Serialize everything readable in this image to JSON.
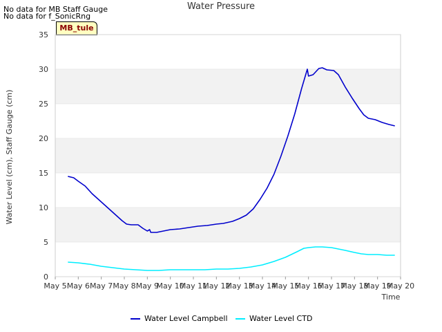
{
  "notes": [
    "No data for MB Staff Gauge",
    "No data for f_SonicRng"
  ],
  "station_label": "MB_tule",
  "colors": {
    "campbell": "#0000cc",
    "ctd": "#00eeff",
    "band": "#f2f2f2",
    "grid": "#dddddd"
  },
  "chart_data": {
    "type": "line",
    "title": "Water Pressure",
    "xlabel": "Time",
    "ylabel": "Water Level (cm), Staff Gauge (cm)",
    "xlim": [
      5,
      20
    ],
    "ylim": [
      0,
      35
    ],
    "x_ticks": [
      5,
      6,
      7,
      8,
      9,
      10,
      11,
      12,
      13,
      14,
      15,
      16,
      17,
      18,
      19,
      20
    ],
    "x_tick_labels": [
      "May 5",
      "May 6",
      "May 7",
      "May 8",
      "May 9",
      "May 10",
      "May 11",
      "May 12",
      "May 13",
      "May 14",
      "May 15",
      "May 16",
      "May 17",
      "May 18",
      "May 19",
      "May 20"
    ],
    "y_ticks": [
      0,
      5,
      10,
      15,
      20,
      25,
      30,
      35
    ],
    "series": [
      {
        "name": "Water Level Campbell",
        "color": "#0000cc",
        "points": [
          [
            5.55,
            14.5
          ],
          [
            5.8,
            14.3
          ],
          [
            6.0,
            13.8
          ],
          [
            6.3,
            13.1
          ],
          [
            6.6,
            12.0
          ],
          [
            7.0,
            10.8
          ],
          [
            7.3,
            9.9
          ],
          [
            7.6,
            9.0
          ],
          [
            7.9,
            8.1
          ],
          [
            8.1,
            7.6
          ],
          [
            8.3,
            7.5
          ],
          [
            8.6,
            7.5
          ],
          [
            8.8,
            7.0
          ],
          [
            9.0,
            6.6
          ],
          [
            9.1,
            6.8
          ],
          [
            9.15,
            6.4
          ],
          [
            9.4,
            6.4
          ],
          [
            9.7,
            6.6
          ],
          [
            10.0,
            6.8
          ],
          [
            10.4,
            6.9
          ],
          [
            10.8,
            7.1
          ],
          [
            11.2,
            7.3
          ],
          [
            11.6,
            7.4
          ],
          [
            12.0,
            7.6
          ],
          [
            12.3,
            7.7
          ],
          [
            12.7,
            8.0
          ],
          [
            13.0,
            8.4
          ],
          [
            13.3,
            8.9
          ],
          [
            13.6,
            9.8
          ],
          [
            13.9,
            11.2
          ],
          [
            14.2,
            12.8
          ],
          [
            14.5,
            14.8
          ],
          [
            14.8,
            17.4
          ],
          [
            15.1,
            20.3
          ],
          [
            15.4,
            23.5
          ],
          [
            15.7,
            27.2
          ],
          [
            15.95,
            30.0
          ],
          [
            16.0,
            29.0
          ],
          [
            16.2,
            29.2
          ],
          [
            16.45,
            30.1
          ],
          [
            16.6,
            30.2
          ],
          [
            16.8,
            29.9
          ],
          [
            17.1,
            29.8
          ],
          [
            17.3,
            29.2
          ],
          [
            17.6,
            27.4
          ],
          [
            17.9,
            25.8
          ],
          [
            18.2,
            24.3
          ],
          [
            18.4,
            23.4
          ],
          [
            18.6,
            22.9
          ],
          [
            18.9,
            22.7
          ],
          [
            19.2,
            22.3
          ],
          [
            19.5,
            22.0
          ],
          [
            19.75,
            21.8
          ]
        ]
      },
      {
        "name": "Water Level CTD",
        "color": "#00eeff",
        "points": [
          [
            5.55,
            2.1
          ],
          [
            6.0,
            2.0
          ],
          [
            6.5,
            1.8
          ],
          [
            7.0,
            1.5
          ],
          [
            7.5,
            1.3
          ],
          [
            8.0,
            1.1
          ],
          [
            8.5,
            1.0
          ],
          [
            9.0,
            0.9
          ],
          [
            9.5,
            0.9
          ],
          [
            10.0,
            1.0
          ],
          [
            10.5,
            1.0
          ],
          [
            11.0,
            1.0
          ],
          [
            11.5,
            1.0
          ],
          [
            12.0,
            1.1
          ],
          [
            12.5,
            1.1
          ],
          [
            13.0,
            1.2
          ],
          [
            13.5,
            1.4
          ],
          [
            14.0,
            1.7
          ],
          [
            14.5,
            2.2
          ],
          [
            15.0,
            2.8
          ],
          [
            15.5,
            3.6
          ],
          [
            15.8,
            4.1
          ],
          [
            16.0,
            4.2
          ],
          [
            16.3,
            4.3
          ],
          [
            16.6,
            4.3
          ],
          [
            17.0,
            4.2
          ],
          [
            17.3,
            4.0
          ],
          [
            17.6,
            3.8
          ],
          [
            18.0,
            3.5
          ],
          [
            18.3,
            3.3
          ],
          [
            18.6,
            3.2
          ],
          [
            19.0,
            3.2
          ],
          [
            19.4,
            3.1
          ],
          [
            19.75,
            3.1
          ]
        ]
      }
    ]
  }
}
